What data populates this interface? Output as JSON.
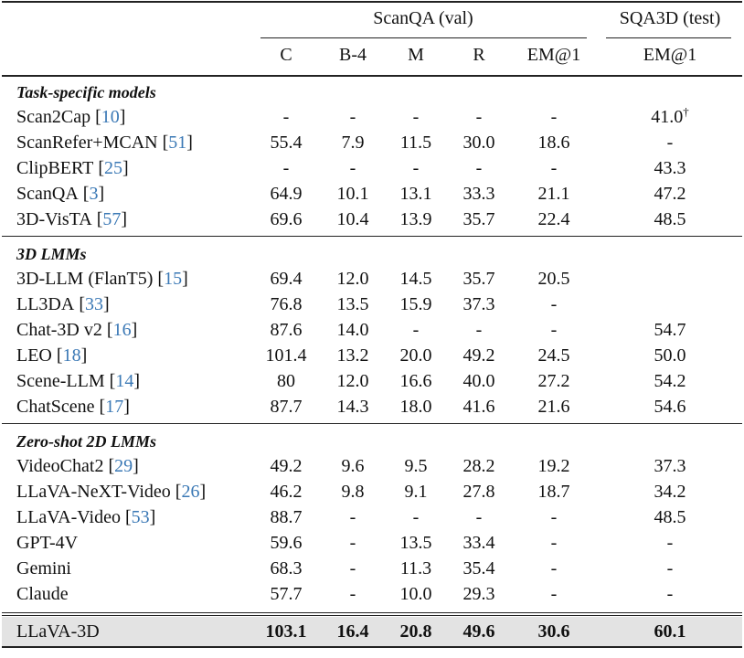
{
  "header": {
    "group1": "ScanQA (val)",
    "group2": "SQA3D (test)",
    "columns": [
      "C",
      "B-4",
      "M",
      "R",
      "EM@1",
      "EM@1"
    ]
  },
  "ref_brackets": [
    "[",
    "]"
  ],
  "sections": [
    {
      "title": "Task-specific models",
      "rows": [
        {
          "model": "Scan2Cap",
          "ref": "10",
          "cells": [
            "-",
            "-",
            "-",
            "-",
            "-",
            "41.0"
          ],
          "note": "†"
        },
        {
          "model": "ScanRefer+MCAN",
          "ref": "51",
          "cells": [
            "55.4",
            "7.9",
            "11.5",
            "30.0",
            "18.6",
            "-"
          ]
        },
        {
          "model": "ClipBERT",
          "ref": "25",
          "cells": [
            "-",
            "-",
            "-",
            "-",
            "-",
            "43.3"
          ]
        },
        {
          "model": "ScanQA",
          "ref": "3",
          "cells": [
            "64.9",
            "10.1",
            "13.1",
            "33.3",
            "21.1",
            "47.2"
          ]
        },
        {
          "model": "3D-VisTA",
          "ref": "57",
          "cells": [
            "69.6",
            "10.4",
            "13.9",
            "35.7",
            "22.4",
            "48.5"
          ]
        }
      ]
    },
    {
      "title": "3D LMMs",
      "rows": [
        {
          "model": "3D-LLM (FlanT5)",
          "ref": "15",
          "cells": [
            "69.4",
            "12.0",
            "14.5",
            "35.7",
            "20.5",
            null
          ]
        },
        {
          "model": "LL3DA",
          "ref": "33",
          "cells": [
            "76.8",
            "13.5",
            "15.9",
            "37.3",
            "-",
            null
          ]
        },
        {
          "model": "Chat-3D v2",
          "ref": "16",
          "cells": [
            "87.6",
            "14.0",
            "-",
            "-",
            "-",
            "54.7"
          ]
        },
        {
          "model": "LEO",
          "ref": "18",
          "cells": [
            "101.4",
            "13.2",
            "20.0",
            "49.2",
            "24.5",
            "50.0"
          ]
        },
        {
          "model": "Scene-LLM",
          "ref": "14",
          "cells": [
            "80",
            "12.0",
            "16.6",
            "40.0",
            "27.2",
            "54.2"
          ]
        },
        {
          "model": "ChatScene",
          "ref": "17",
          "cells": [
            "87.7",
            "14.3",
            "18.0",
            "41.6",
            "21.6",
            "54.6"
          ]
        }
      ]
    },
    {
      "title": "Zero-shot 2D LMMs",
      "rows": [
        {
          "model": "VideoChat2",
          "ref": "29",
          "cells": [
            "49.2",
            "9.6",
            "9.5",
            "28.2",
            "19.2",
            "37.3"
          ]
        },
        {
          "model": "LLaVA-NeXT-Video",
          "ref": "26",
          "cells": [
            "46.2",
            "9.8",
            "9.1",
            "27.8",
            "18.7",
            "34.2"
          ]
        },
        {
          "model": "LLaVA-Video",
          "ref": "53",
          "cells": [
            "88.7",
            "-",
            "-",
            "-",
            "-",
            "48.5"
          ]
        },
        {
          "model": "GPT-4V",
          "cells": [
            "59.6",
            "-",
            "13.5",
            "33.4",
            "-",
            "-"
          ]
        },
        {
          "model": "Gemini",
          "cells": [
            "68.3",
            "-",
            "11.3",
            "35.4",
            "-",
            "-"
          ]
        },
        {
          "model": "Claude",
          "cells": [
            "57.7",
            "-",
            "10.0",
            "29.3",
            "-",
            "-"
          ]
        }
      ]
    }
  ],
  "final": {
    "model": "LLaVA-3D",
    "cells": [
      "103.1",
      "16.4",
      "20.8",
      "49.6",
      "30.6",
      "60.1"
    ]
  }
}
